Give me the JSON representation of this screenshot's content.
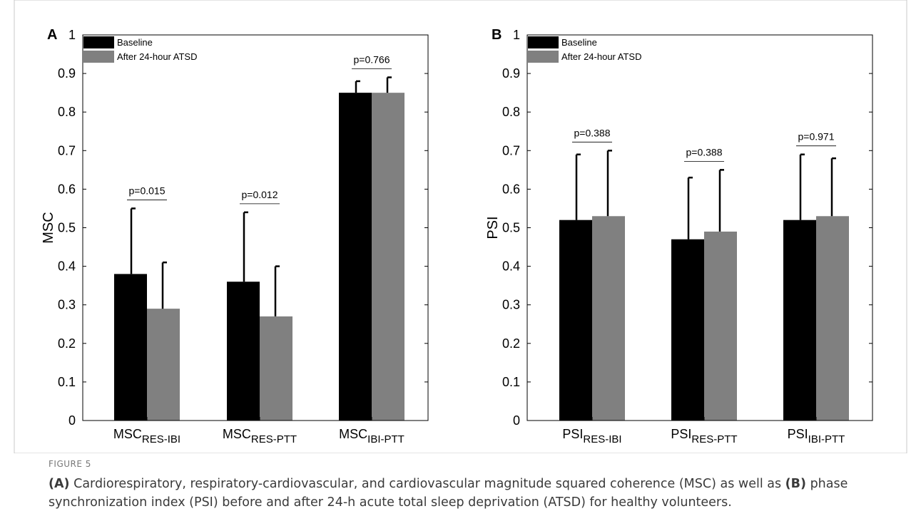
{
  "figure": {
    "label": "FIGURE 5",
    "caption": [
      {
        "text": "(A)",
        "bold": true
      },
      {
        "text": " Cardiorespiratory, respiratory-cardiovascular, and cardiovascular magnitude squared coherence (MSC) as well as ",
        "bold": false
      },
      {
        "text": "(B)",
        "bold": true
      },
      {
        "text": " phase synchronization index (PSI) before and after 24-h acute total sleep deprivation (ATSD) for healthy volunteers.",
        "bold": false
      }
    ]
  },
  "colors": {
    "baseline": "#000000",
    "after": "#808080",
    "frame": "#c8c8c8"
  },
  "chart_data": [
    {
      "type": "bar",
      "panel_label": "A",
      "ylabel": "MSC",
      "ylim": [
        0,
        1
      ],
      "yticks": [
        "0",
        "0.1",
        "0.2",
        "0.3",
        "0.4",
        "0.5",
        "0.6",
        "0.7",
        "0.8",
        "0.9",
        "1"
      ],
      "categories": [
        {
          "base": "MSC",
          "sub": "RES-IBI"
        },
        {
          "base": "MSC",
          "sub": "RES-PTT"
        },
        {
          "base": "MSC",
          "sub": "IBI-PTT"
        }
      ],
      "legend": {
        "position": "top-left",
        "entries": [
          "Baseline",
          "After 24-hour ATSD"
        ]
      },
      "series": [
        {
          "name": "Baseline",
          "values": [
            0.38,
            0.36,
            0.85
          ],
          "errors": [
            0.17,
            0.18,
            0.03
          ]
        },
        {
          "name": "After 24-hour ATSD",
          "values": [
            0.29,
            0.27,
            0.85
          ],
          "errors": [
            0.12,
            0.13,
            0.04
          ]
        }
      ],
      "annotations": [
        "p=0.015",
        "p=0.012",
        "p=0.766"
      ]
    },
    {
      "type": "bar",
      "panel_label": "B",
      "ylabel": "PSI",
      "ylim": [
        0,
        1
      ],
      "yticks": [
        "0",
        "0.1",
        "0.2",
        "0.3",
        "0.4",
        "0.5",
        "0.6",
        "0.7",
        "0.8",
        "0.9",
        "1"
      ],
      "categories": [
        {
          "base": "PSI",
          "sub": "RES-IBI"
        },
        {
          "base": "PSI",
          "sub": "RES-PTT"
        },
        {
          "base": "PSI",
          "sub": "IBI-PTT"
        }
      ],
      "legend": {
        "position": "top-left",
        "entries": [
          "Baseline",
          "After 24-hour ATSD"
        ]
      },
      "series": [
        {
          "name": "Baseline",
          "values": [
            0.52,
            0.47,
            0.52
          ],
          "errors": [
            0.17,
            0.16,
            0.17
          ]
        },
        {
          "name": "After 24-hour ATSD",
          "values": [
            0.53,
            0.49,
            0.53
          ],
          "errors": [
            0.17,
            0.16,
            0.15
          ]
        }
      ],
      "annotations": [
        "p=0.388",
        "p=0.388",
        "p=0.971"
      ]
    }
  ]
}
